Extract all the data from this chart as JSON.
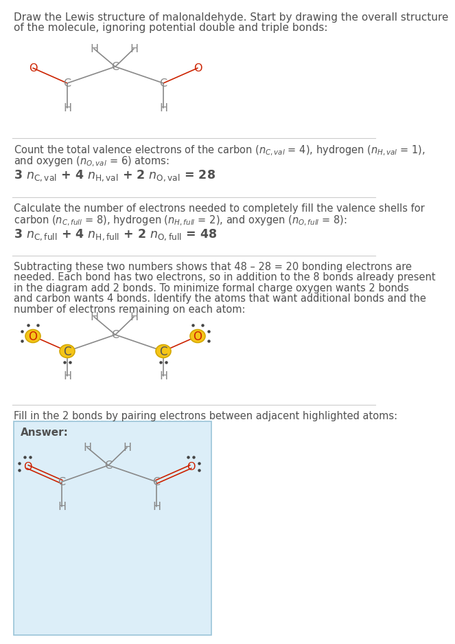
{
  "bg_color": "#ffffff",
  "text_color": "#505050",
  "red_color": "#cc2200",
  "bond_color": "#888888",
  "highlight_fill": "#f5c518",
  "highlight_edge": "#d4a800",
  "answer_box_color": "#dceef8",
  "answer_box_edge": "#9ac4d8",
  "divider_color": "#cccccc",
  "dot_color": "#444444",
  "title1": "Draw the Lewis structure of malonaldehyde. Start by drawing the overall structure",
  "title2": "of the molecule, ignoring potential double and triple bonds:",
  "s2_line1": "Count the total valence electrons of the carbon ($n_{C,val}$ = 4), hydrogen ($n_{H,val}$ = 1),",
  "s2_line2": "and oxygen ($n_{O,val}$ = 6) atoms:",
  "s2_formula": "3 $n_{C,val}$ + 4 $n_{H,val}$ + 2 $n_{O,val}$ = 28",
  "s3_line1": "Calculate the number of electrons needed to completely fill the valence shells for",
  "s3_line2": "carbon ($n_{C,full}$ = 8), hydrogen ($n_{H,full}$ = 2), and oxygen ($n_{O,full}$ = 8):",
  "s3_formula": "3 $n_{C,full}$ + 4 $n_{H,full}$ + 2 $n_{O,full}$ = 48",
  "s4_lines": [
    "Subtracting these two numbers shows that 48 – 28 = 20 bonding electrons are",
    "needed. Each bond has two electrons, so in addition to the 8 bonds already present",
    "in the diagram add 2 bonds. To minimize formal charge oxygen wants 2 bonds",
    "and carbon wants 4 bonds. Identify the atoms that want additional bonds and the",
    "number of electrons remaining on each atom:"
  ],
  "s5_line": "Fill in the 2 bonds by pairing electrons between adjacent highlighted atoms:",
  "answer_label": "Answer:"
}
